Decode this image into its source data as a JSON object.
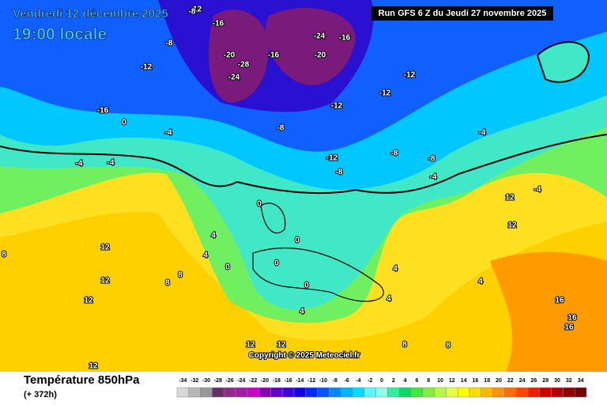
{
  "header": {
    "title": "Vendredi 12 décembre 2025",
    "time": "19:00 locale",
    "run": "Run GFS 6 Z du Jeudi 27 novembre 2025"
  },
  "footer": {
    "variable": "Température 850hPa",
    "lead": "(+ 372h)",
    "copyright": "Copyright © 2025 Meteociel.fr"
  },
  "scale": {
    "values": [
      -34,
      -32,
      -30,
      -28,
      -26,
      -24,
      -22,
      -20,
      -18,
      -16,
      -14,
      -12,
      -10,
      -8,
      -6,
      -4,
      -2,
      0,
      2,
      4,
      6,
      8,
      10,
      12,
      14,
      16,
      18,
      20,
      22,
      24,
      26,
      28,
      30,
      32,
      34
    ],
    "colors": [
      "#d8d8d8",
      "#b8b8b8",
      "#989898",
      "#6c2c6c",
      "#8c2c8c",
      "#a41ca4",
      "#c800c8",
      "#8c00b4",
      "#6400c8",
      "#3c00d8",
      "#1400e8",
      "#0028ff",
      "#0058ff",
      "#0088ff",
      "#00b4ff",
      "#00dcff",
      "#5cf4ff",
      "#90ffe8",
      "#30f0a0",
      "#10d860",
      "#40e840",
      "#80f040",
      "#b8f840",
      "#e8ff40",
      "#ffff00",
      "#ffdc00",
      "#ffb800",
      "#ff9400",
      "#ff6c00",
      "#ff4400",
      "#f01c00",
      "#d00000",
      "#b00000",
      "#900000",
      "#700000"
    ]
  },
  "map_labels": [
    -12,
    -16,
    -12,
    -20,
    -24,
    -16,
    -8,
    -8,
    -20,
    -28,
    -24,
    -16,
    -12,
    -12,
    -12,
    -16,
    -8,
    -4,
    -4,
    -4,
    -8,
    -12,
    -8,
    -8,
    -4,
    -4,
    -4,
    0,
    0,
    4,
    4,
    0,
    0,
    0,
    4,
    8,
    8,
    12,
    12,
    12,
    12,
    8,
    12,
    16,
    12,
    16,
    16,
    4,
    4,
    4,
    8,
    12,
    12,
    0,
    8
  ]
}
